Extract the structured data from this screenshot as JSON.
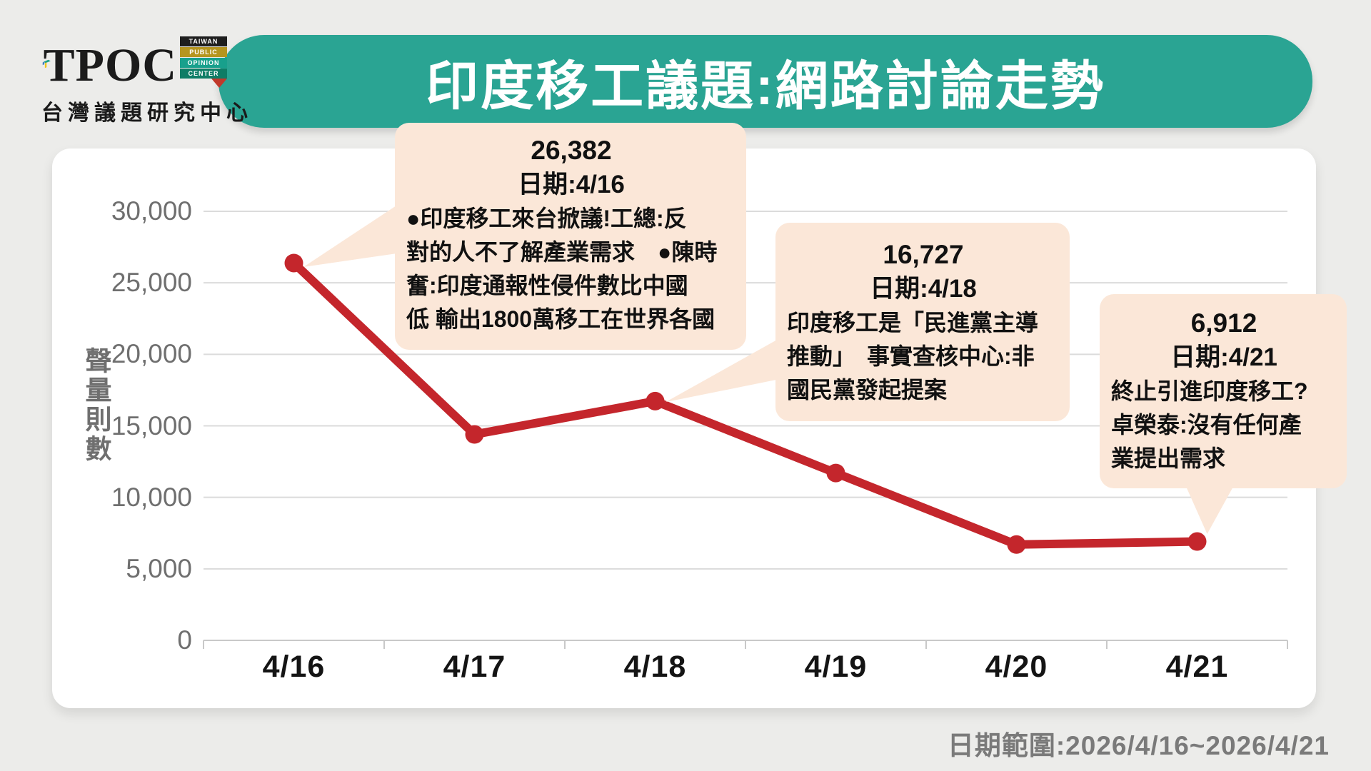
{
  "header": {
    "title": "印度移工議題:網路討論走勢"
  },
  "logo": {
    "wordmark": "TPOC",
    "subtitle": "台灣議題研究中心",
    "badges": [
      "TAIWAN",
      "PUBLIC",
      "OPINION",
      "CENTER"
    ]
  },
  "chart_data": {
    "type": "line",
    "title": "印度移工議題:網路討論走勢",
    "categories": [
      "4/16",
      "4/17",
      "4/18",
      "4/19",
      "4/20",
      "4/21"
    ],
    "values": [
      26382,
      14400,
      16727,
      11700,
      6700,
      6912
    ],
    "xlabel": "",
    "ylabel": "聲量則數",
    "ylim": [
      0,
      30000
    ],
    "yticks": [
      {
        "value": 0,
        "label": "0"
      },
      {
        "value": 5000,
        "label": "5,000"
      },
      {
        "value": 10000,
        "label": "10,000"
      },
      {
        "value": 15000,
        "label": "15,000"
      },
      {
        "value": 20000,
        "label": "20,000"
      },
      {
        "value": 25000,
        "label": "25,000"
      },
      {
        "value": 30000,
        "label": "30,000"
      }
    ],
    "grid": true,
    "legend": false,
    "line_color": "#C4262C",
    "grid_color": "#DBDBDB"
  },
  "annotations": [
    {
      "value": "26,382",
      "date": "日期:4/16",
      "body": "●印度移工來台掀議!工總:反\n對的人不了解產業需求　●陳時\n奮:印度通報性侵件數比中國\n低 輸出1800萬移工在世界各國"
    },
    {
      "value": "16,727",
      "date": "日期:4/18",
      "body": "印度移工是「民進黨主導\n推動」　事實查核中心:非\n國民黨發起提案"
    },
    {
      "value": "6,912",
      "date": "日期:4/21",
      "body": "終止引進印度移工?\n卓榮泰:沒有任何產\n業提出需求"
    }
  ],
  "footer": {
    "date_range": "日期範圍:2026/4/16~2026/4/21"
  }
}
